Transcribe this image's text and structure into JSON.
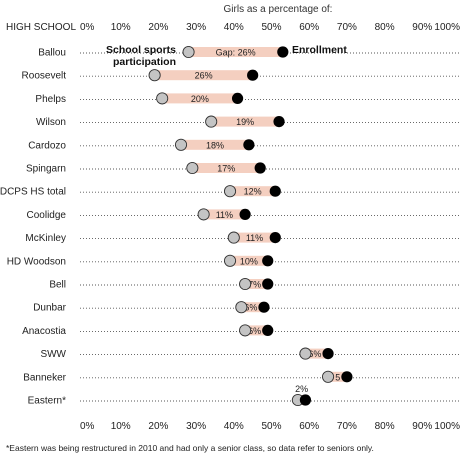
{
  "chart_data": {
    "type": "dumbbell",
    "top_title": "Girls as a percentage of:",
    "row_header": "HIGH SCHOOL",
    "x_ticks": [
      "0%",
      "10%",
      "20%",
      "30%",
      "40%",
      "50%",
      "60%",
      "70%",
      "80%",
      "90%",
      "100%"
    ],
    "xlim": [
      0,
      100
    ],
    "legend": {
      "participation_label_line1": "School sports",
      "participation_label_line2": "participation",
      "enrollment_label": "Enrollment"
    },
    "rows": [
      {
        "school": "Ballou",
        "participation": 28,
        "enrollment": 53,
        "gap_label": "Gap: 26%"
      },
      {
        "school": "Roosevelt",
        "participation": 19,
        "enrollment": 45,
        "gap_label": "26%"
      },
      {
        "school": "Phelps",
        "participation": 21,
        "enrollment": 41,
        "gap_label": "20%"
      },
      {
        "school": "Wilson",
        "participation": 34,
        "enrollment": 52,
        "gap_label": "19%"
      },
      {
        "school": "Cardozo",
        "participation": 26,
        "enrollment": 44,
        "gap_label": "18%"
      },
      {
        "school": "Spingarn",
        "participation": 29,
        "enrollment": 47,
        "gap_label": "17%"
      },
      {
        "school": "DCPS HS total",
        "participation": 39,
        "enrollment": 51,
        "gap_label": "12%"
      },
      {
        "school": "Coolidge",
        "participation": 32,
        "enrollment": 43,
        "gap_label": "11%"
      },
      {
        "school": "McKinley",
        "participation": 40,
        "enrollment": 51,
        "gap_label": "11%"
      },
      {
        "school": "HD Woodson",
        "participation": 39,
        "enrollment": 49,
        "gap_label": "10%"
      },
      {
        "school": "Bell",
        "participation": 43,
        "enrollment": 49,
        "gap_label": "7%"
      },
      {
        "school": "Dunbar",
        "participation": 42,
        "enrollment": 48,
        "gap_label": "6%"
      },
      {
        "school": "Anacostia",
        "participation": 43,
        "enrollment": 49,
        "gap_label": "6%"
      },
      {
        "school": "SWW",
        "participation": 59,
        "enrollment": 65,
        "gap_label": "6%"
      },
      {
        "school": "Banneker",
        "participation": 65,
        "enrollment": 70,
        "gap_label": "5"
      },
      {
        "school": "Eastern*",
        "participation": 57,
        "enrollment": 59,
        "gap_label": "2%"
      }
    ],
    "colors": {
      "participation_fill": "#c4c4c4",
      "enrollment_fill": "#000000",
      "gap_bar": "#f4cfc0",
      "dotted_line": "#555555"
    },
    "footnote": "*Eastern was being restructured in 2010 and had only a senior class, so data refer to seniors only."
  }
}
